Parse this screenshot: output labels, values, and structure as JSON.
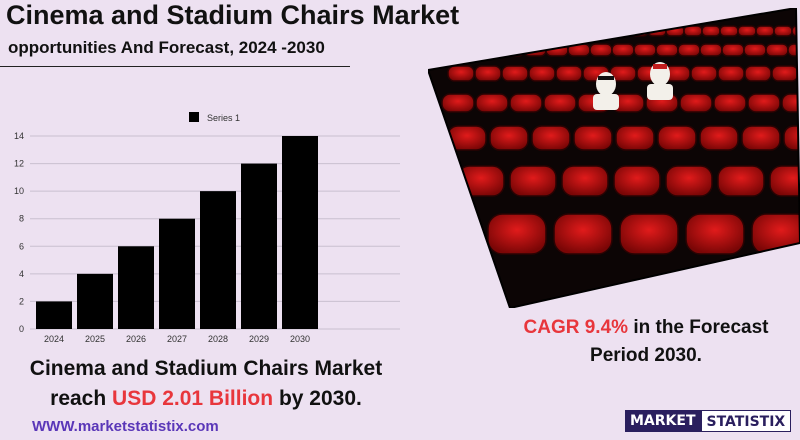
{
  "header": {
    "title": "Cinema and Stadium Chairs Market",
    "subtitle": "opportunities And Forecast, 2024 -2030"
  },
  "cagr": {
    "label": "CAGR",
    "value": "9.4%",
    "suffix": "in the  Forecast",
    "line2": "Period  2030."
  },
  "reach": {
    "line1": "Cinema and Stadium Chairs Market",
    "prefix": "reach",
    "value": "USD 2.01 Billion",
    "suffix": "by 2030."
  },
  "footer": {
    "website": "WWW.marketstatistix.com",
    "logo_part1": "MARKET",
    "logo_part2": "STATISTIX"
  },
  "colors": {
    "background": "#ede1f1",
    "accent_red": "#e8363c",
    "bar": "#000000",
    "link": "#5a37b8"
  },
  "chart_data": {
    "type": "bar",
    "categories": [
      "2024",
      "2025",
      "2026",
      "2027",
      "2028",
      "2029",
      "2030"
    ],
    "series": [
      {
        "name": "Series 1",
        "values": [
          2,
          4,
          6,
          8,
          10,
          12,
          14
        ]
      }
    ],
    "yticks": [
      0,
      2,
      4,
      6,
      8,
      10,
      12,
      14
    ],
    "ylim": [
      0,
      14
    ],
    "grid": true,
    "legend": "top-center"
  }
}
